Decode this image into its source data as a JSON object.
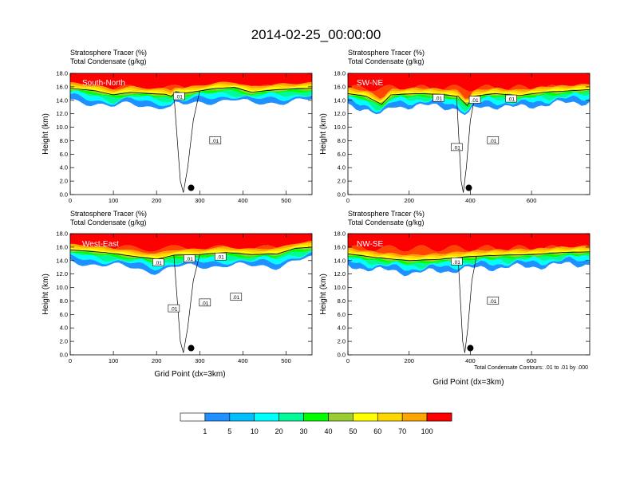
{
  "figure": {
    "title": "2014-02-25_00:00:00",
    "contour_note": "Total Condensate Contours: .01 to .01 by .000"
  },
  "chart_data": [
    {
      "type": "heatmap",
      "panel": "South-North",
      "subtitle_line1": "Stratosphere Tracer   (%)",
      "subtitle_line2": "Total Condensate   (g/kg)",
      "ylabel": "Height (km)",
      "xlabel": "",
      "xlim": [
        0,
        560
      ],
      "ylim": [
        0,
        18
      ],
      "xticks": [
        "0",
        "100",
        "200",
        "300",
        "400",
        "500"
      ],
      "yticks": [
        "0.0",
        "2.0",
        "4.0",
        "6.0",
        "8.0",
        "10.0",
        "12.0",
        "14.0",
        "16.0",
        "18.0"
      ],
      "contour_labels": [
        ".01",
        ".01"
      ],
      "marker": [
        280,
        1.0
      ],
      "tropopause_km": [
        [
          0,
          15.8
        ],
        [
          60,
          15.4
        ],
        [
          100,
          14.8
        ],
        [
          140,
          15.2
        ],
        [
          180,
          15.0
        ],
        [
          220,
          14.9
        ],
        [
          235,
          14.6
        ],
        [
          245,
          15.3
        ],
        [
          260,
          15.0
        ],
        [
          300,
          15.4
        ],
        [
          340,
          15.8
        ],
        [
          380,
          15.9
        ],
        [
          420,
          15.2
        ],
        [
          480,
          15.6
        ],
        [
          560,
          15.8
        ]
      ]
    },
    {
      "type": "heatmap",
      "panel": "SW-NE",
      "subtitle_line1": "Stratosphere Tracer   (%)",
      "subtitle_line2": "Total Condensate   (g/kg)",
      "ylabel": "Height (km)",
      "xlabel": "",
      "xlim": [
        0,
        790
      ],
      "ylim": [
        0,
        18
      ],
      "xticks": [
        "0",
        "200",
        "400",
        "600"
      ],
      "yticks": [
        "0.0",
        "2.0",
        "4.0",
        "6.0",
        "8.0",
        "10.0",
        "12.0",
        "14.0",
        "16.0",
        "18.0"
      ],
      "contour_labels": [
        ".01",
        ".01",
        ".01",
        ".01",
        ".01"
      ],
      "marker": [
        395,
        1.0
      ],
      "tropopause_km": [
        [
          0,
          15.0
        ],
        [
          60,
          14.6
        ],
        [
          110,
          13.4
        ],
        [
          140,
          14.8
        ],
        [
          220,
          15.0
        ],
        [
          300,
          14.9
        ],
        [
          360,
          14.6
        ],
        [
          390,
          13.2
        ],
        [
          410,
          14.6
        ],
        [
          480,
          15.0
        ],
        [
          560,
          14.7
        ],
        [
          640,
          15.2
        ],
        [
          720,
          15.4
        ],
        [
          790,
          15.6
        ]
      ]
    },
    {
      "type": "heatmap",
      "panel": "West-East",
      "subtitle_line1": "Stratosphere Tracer   (%)",
      "subtitle_line2": "Total Condensate   (g/kg)",
      "ylabel": "Height (km)",
      "xlabel": "Grid Point (dx=3km)",
      "xlim": [
        0,
        560
      ],
      "ylim": [
        0,
        18
      ],
      "xticks": [
        "0",
        "100",
        "200",
        "300",
        "400",
        "500"
      ],
      "yticks": [
        "0.0",
        "2.0",
        "4.0",
        "6.0",
        "8.0",
        "10.0",
        "12.0",
        "14.0",
        "16.0",
        "18.0"
      ],
      "contour_labels": [
        ".01",
        ".01",
        ".01",
        ".01",
        ".01",
        ".01"
      ],
      "marker": [
        280,
        1.0
      ],
      "tropopause_km": [
        [
          0,
          15.6
        ],
        [
          80,
          15.2
        ],
        [
          150,
          14.6
        ],
        [
          200,
          14.2
        ],
        [
          240,
          14.8
        ],
        [
          300,
          14.9
        ],
        [
          360,
          15.2
        ],
        [
          420,
          14.9
        ],
        [
          480,
          15.0
        ],
        [
          520,
          15.8
        ],
        [
          560,
          16.0
        ]
      ]
    },
    {
      "type": "heatmap",
      "panel": "NW-SE",
      "subtitle_line1": "Stratosphere Tracer   (%)",
      "subtitle_line2": "Total Condensate   (g/kg)",
      "ylabel": "Height (km)",
      "xlabel": "Grid Point (dx=3km)",
      "xlim": [
        0,
        790
      ],
      "ylim": [
        0,
        18
      ],
      "xticks": [
        "0",
        "200",
        "400",
        "600"
      ],
      "yticks": [
        "0.0",
        "2.0",
        "4.0",
        "6.0",
        "8.0",
        "10.0",
        "12.0",
        "14.0",
        "16.0",
        "18.0"
      ],
      "contour_labels": [
        ".01",
        ".01"
      ],
      "marker": [
        400,
        1.0
      ],
      "tropopause_km": [
        [
          0,
          15.0
        ],
        [
          100,
          14.4
        ],
        [
          200,
          14.0
        ],
        [
          300,
          14.2
        ],
        [
          400,
          14.6
        ],
        [
          500,
          14.8
        ],
        [
          600,
          14.9
        ],
        [
          700,
          15.2
        ],
        [
          790,
          15.3
        ]
      ]
    }
  ],
  "colorbar": {
    "labels": [
      "1",
      "5",
      "10",
      "20",
      "30",
      "40",
      "50",
      "60",
      "70",
      "100"
    ],
    "colors": [
      "#ffffff",
      "#1e90ff",
      "#00bfff",
      "#00ffff",
      "#00fa9a",
      "#00ff00",
      "#9acd32",
      "#ffff00",
      "#ffd700",
      "#ffa500",
      "#ff4500",
      "#ff0000"
    ]
  }
}
